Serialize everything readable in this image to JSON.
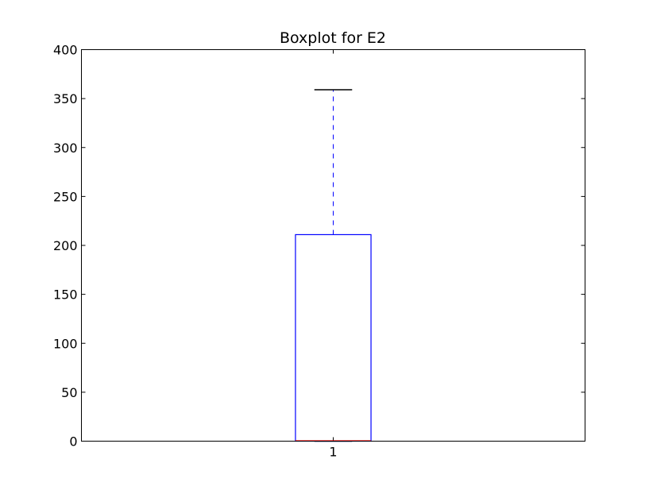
{
  "chart_data": {
    "type": "box",
    "title": "Boxplot for E2",
    "xlabel": "",
    "ylabel": "",
    "ylim": [
      0,
      400
    ],
    "yticks": [
      0,
      50,
      100,
      150,
      200,
      250,
      300,
      350,
      400
    ],
    "categories": [
      "1"
    ],
    "boxes": [
      {
        "category": "1",
        "whisker_low": 0,
        "q1": 0,
        "median": 0,
        "q3": 211,
        "whisker_high": 359
      }
    ],
    "grid": false,
    "colors": {
      "box": "#0000ff",
      "whisker": "#0000ff",
      "cap": "#000000",
      "median": "#ff0000"
    }
  }
}
